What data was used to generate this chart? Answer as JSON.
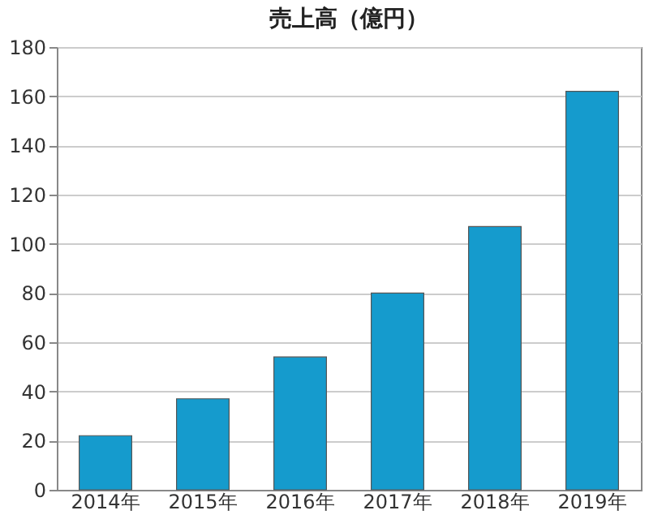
{
  "chart_data": {
    "type": "bar",
    "title": "売上高（億円）",
    "categories": [
      "2014年",
      "2015年",
      "2016年",
      "2017年",
      "2018年",
      "2019年"
    ],
    "values": [
      22,
      37,
      54,
      80,
      107,
      162
    ],
    "color": "#159bcd",
    "ylim": [
      0,
      180
    ],
    "yticks": [
      0,
      20,
      40,
      60,
      80,
      100,
      120,
      140,
      160,
      180
    ],
    "grid": "y"
  }
}
